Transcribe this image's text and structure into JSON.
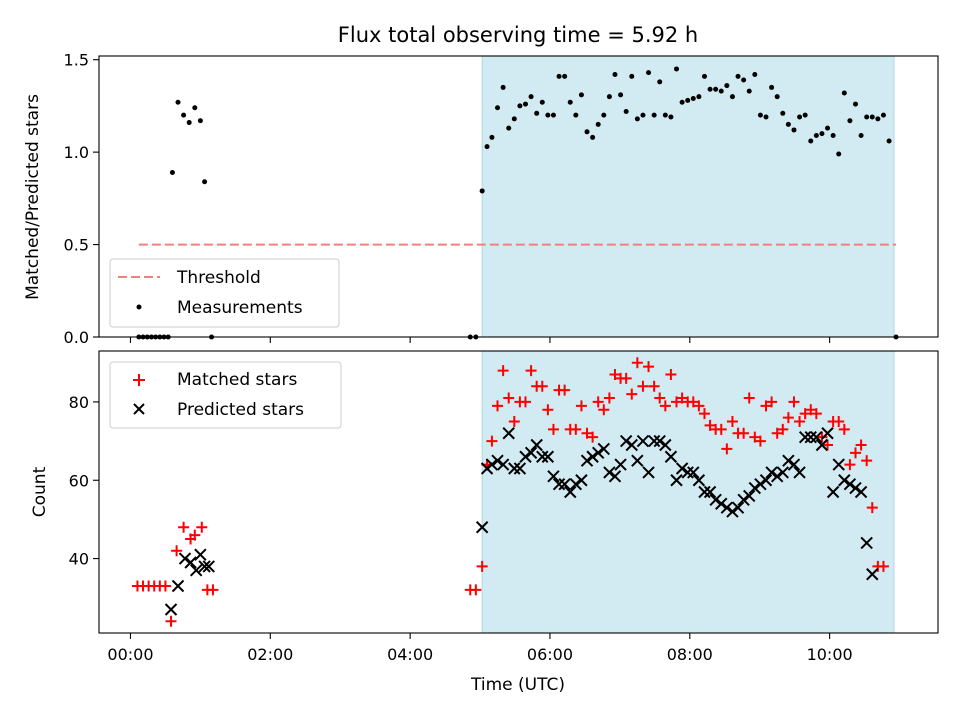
{
  "chart_data": [
    {
      "id": "ratio",
      "type": "scatter",
      "title": "Flux total observing time = 5.92 h",
      "xlabel": "",
      "ylabel": "Matched/Predicted stars",
      "xlim": [
        -0.45,
        11.55
      ],
      "ylim": [
        0,
        1.52
      ],
      "xticks": [
        0,
        2,
        4,
        6,
        8,
        10
      ],
      "yticks": [
        0.0,
        0.5,
        1.0,
        1.5
      ],
      "ytick_labels": [
        "0.0",
        "0.5",
        "1.0",
        "1.5"
      ],
      "shaded_region": {
        "x": [
          5.03,
          10.92
        ],
        "color": "#add8e6"
      },
      "threshold": {
        "y": 0.5,
        "x": [
          0.12,
          10.95
        ],
        "color": "#f08080",
        "label": "Threshold"
      },
      "legend": {
        "location": "lower-left",
        "entries": [
          "Threshold",
          "Measurements"
        ]
      },
      "series": [
        {
          "name": "Measurements",
          "color": "#000000",
          "marker": "dot",
          "points": [
            [
              0.12,
              0
            ],
            [
              0.18,
              0
            ],
            [
              0.24,
              0
            ],
            [
              0.3,
              0
            ],
            [
              0.36,
              0
            ],
            [
              0.42,
              0
            ],
            [
              0.48,
              0
            ],
            [
              0.54,
              0
            ],
            [
              0.6,
              0.89
            ],
            [
              0.68,
              1.27
            ],
            [
              0.76,
              1.2
            ],
            [
              0.84,
              1.16
            ],
            [
              0.92,
              1.24
            ],
            [
              1.0,
              1.17
            ],
            [
              1.06,
              0.84
            ],
            [
              1.16,
              0
            ],
            [
              4.86,
              0
            ],
            [
              4.94,
              0
            ],
            [
              5.03,
              0.79
            ],
            [
              5.1,
              1.03
            ],
            [
              5.17,
              1.08
            ],
            [
              5.25,
              1.24
            ],
            [
              5.33,
              1.35
            ],
            [
              5.41,
              1.13
            ],
            [
              5.49,
              1.18
            ],
            [
              5.57,
              1.25
            ],
            [
              5.65,
              1.26
            ],
            [
              5.73,
              1.3
            ],
            [
              5.81,
              1.21
            ],
            [
              5.89,
              1.27
            ],
            [
              5.97,
              1.2
            ],
            [
              6.05,
              1.2
            ],
            [
              6.13,
              1.41
            ],
            [
              6.21,
              1.41
            ],
            [
              6.29,
              1.27
            ],
            [
              6.37,
              1.2
            ],
            [
              6.45,
              1.31
            ],
            [
              6.53,
              1.11
            ],
            [
              6.61,
              1.08
            ],
            [
              6.69,
              1.15
            ],
            [
              6.77,
              1.2
            ],
            [
              6.85,
              1.3
            ],
            [
              6.93,
              1.42
            ],
            [
              7.01,
              1.31
            ],
            [
              7.09,
              1.22
            ],
            [
              7.17,
              1.41
            ],
            [
              7.25,
              1.18
            ],
            [
              7.33,
              1.2
            ],
            [
              7.41,
              1.43
            ],
            [
              7.49,
              1.2
            ],
            [
              7.57,
              1.38
            ],
            [
              7.65,
              1.2
            ],
            [
              7.73,
              1.19
            ],
            [
              7.81,
              1.45
            ],
            [
              7.89,
              1.27
            ],
            [
              7.97,
              1.28
            ],
            [
              8.05,
              1.29
            ],
            [
              8.13,
              1.3
            ],
            [
              8.21,
              1.41
            ],
            [
              8.29,
              1.34
            ],
            [
              8.37,
              1.34
            ],
            [
              8.45,
              1.33
            ],
            [
              8.53,
              1.36
            ],
            [
              8.61,
              1.3
            ],
            [
              8.69,
              1.41
            ],
            [
              8.77,
              1.39
            ],
            [
              8.85,
              1.33
            ],
            [
              8.93,
              1.42
            ],
            [
              9.01,
              1.2
            ],
            [
              9.09,
              1.19
            ],
            [
              9.17,
              1.35
            ],
            [
              9.25,
              1.3
            ],
            [
              9.33,
              1.21
            ],
            [
              9.41,
              1.15
            ],
            [
              9.49,
              1.12
            ],
            [
              9.57,
              1.19
            ],
            [
              9.65,
              1.2
            ],
            [
              9.73,
              1.06
            ],
            [
              9.81,
              1.09
            ],
            [
              9.89,
              1.1
            ],
            [
              9.97,
              1.13
            ],
            [
              10.05,
              1.09
            ],
            [
              10.13,
              0.99
            ],
            [
              10.21,
              1.32
            ],
            [
              10.29,
              1.17
            ],
            [
              10.37,
              1.26
            ],
            [
              10.45,
              1.09
            ],
            [
              10.53,
              1.19
            ],
            [
              10.61,
              1.19
            ],
            [
              10.69,
              1.18
            ],
            [
              10.77,
              1.2
            ],
            [
              10.85,
              1.06
            ],
            [
              10.95,
              0
            ]
          ]
        }
      ]
    },
    {
      "id": "counts",
      "type": "scatter",
      "title": "",
      "xlabel": "Time (UTC)",
      "ylabel": "Count",
      "xlim": [
        -0.45,
        11.55
      ],
      "ylim": [
        21,
        93
      ],
      "xticks": [
        0,
        2,
        4,
        6,
        8,
        10
      ],
      "xtick_labels": [
        "00:00",
        "02:00",
        "04:00",
        "06:00",
        "08:00",
        "10:00"
      ],
      "yticks": [
        40,
        60,
        80
      ],
      "ytick_labels": [
        "40",
        "60",
        "80"
      ],
      "shaded_region": {
        "x": [
          5.03,
          10.92
        ],
        "color": "#add8e6"
      },
      "legend": {
        "location": "top-left",
        "entries": [
          "Matched stars",
          "Predicted stars"
        ]
      },
      "series": [
        {
          "name": "Matched stars",
          "color": "#ff0000",
          "marker": "plus",
          "points": [
            [
              0.1,
              33
            ],
            [
              0.18,
              33
            ],
            [
              0.26,
              33
            ],
            [
              0.34,
              33
            ],
            [
              0.42,
              33
            ],
            [
              0.5,
              33
            ],
            [
              0.58,
              24
            ],
            [
              0.66,
              42
            ],
            [
              0.76,
              48
            ],
            [
              0.86,
              45
            ],
            [
              0.92,
              46
            ],
            [
              1.02,
              48
            ],
            [
              1.1,
              32
            ],
            [
              1.18,
              32
            ],
            [
              4.86,
              32
            ],
            [
              4.94,
              32
            ],
            [
              5.03,
              38
            ],
            [
              5.1,
              64
            ],
            [
              5.17,
              70
            ],
            [
              5.25,
              79
            ],
            [
              5.33,
              88
            ],
            [
              5.41,
              81
            ],
            [
              5.49,
              75
            ],
            [
              5.57,
              80
            ],
            [
              5.65,
              80
            ],
            [
              5.73,
              88
            ],
            [
              5.81,
              84
            ],
            [
              5.89,
              84
            ],
            [
              5.97,
              78
            ],
            [
              6.05,
              73
            ],
            [
              6.13,
              83
            ],
            [
              6.21,
              83
            ],
            [
              6.29,
              73
            ],
            [
              6.37,
              73
            ],
            [
              6.45,
              79
            ],
            [
              6.53,
              72
            ],
            [
              6.61,
              71
            ],
            [
              6.69,
              80
            ],
            [
              6.77,
              78
            ],
            [
              6.85,
              81
            ],
            [
              6.93,
              87
            ],
            [
              7.01,
              86
            ],
            [
              7.09,
              86
            ],
            [
              7.17,
              82
            ],
            [
              7.25,
              90
            ],
            [
              7.33,
              84
            ],
            [
              7.41,
              89
            ],
            [
              7.49,
              84
            ],
            [
              7.57,
              81
            ],
            [
              7.65,
              79
            ],
            [
              7.73,
              87
            ],
            [
              7.81,
              80
            ],
            [
              7.89,
              81
            ],
            [
              7.97,
              80
            ],
            [
              8.05,
              80
            ],
            [
              8.13,
              79
            ],
            [
              8.21,
              77
            ],
            [
              8.29,
              74
            ],
            [
              8.37,
              73
            ],
            [
              8.45,
              73
            ],
            [
              8.53,
              68
            ],
            [
              8.61,
              75
            ],
            [
              8.69,
              72
            ],
            [
              8.77,
              72
            ],
            [
              8.85,
              81
            ],
            [
              8.93,
              71
            ],
            [
              9.01,
              70
            ],
            [
              9.09,
              79
            ],
            [
              9.17,
              80
            ],
            [
              9.25,
              72
            ],
            [
              9.33,
              73
            ],
            [
              9.41,
              76
            ],
            [
              9.49,
              80
            ],
            [
              9.57,
              75
            ],
            [
              9.65,
              77
            ],
            [
              9.73,
              78
            ],
            [
              9.81,
              77
            ],
            [
              9.89,
              71
            ],
            [
              9.97,
              69
            ],
            [
              10.05,
              75
            ],
            [
              10.13,
              75
            ],
            [
              10.21,
              73
            ],
            [
              10.29,
              64
            ],
            [
              10.37,
              67
            ],
            [
              10.45,
              69
            ],
            [
              10.53,
              65
            ],
            [
              10.61,
              53
            ],
            [
              10.69,
              38
            ],
            [
              10.77,
              38
            ]
          ]
        },
        {
          "name": "Predicted stars",
          "color": "#000000",
          "marker": "x",
          "points": [
            [
              0.58,
              27
            ],
            [
              0.68,
              33
            ],
            [
              0.78,
              40
            ],
            [
              0.86,
              39
            ],
            [
              0.94,
              37
            ],
            [
              1.0,
              41
            ],
            [
              1.06,
              38
            ],
            [
              1.12,
              38
            ],
            [
              5.03,
              48
            ],
            [
              5.1,
              63
            ],
            [
              5.17,
              64
            ],
            [
              5.25,
              65
            ],
            [
              5.33,
              64
            ],
            [
              5.41,
              72
            ],
            [
              5.49,
              63
            ],
            [
              5.57,
              63
            ],
            [
              5.65,
              66
            ],
            [
              5.73,
              67
            ],
            [
              5.81,
              69
            ],
            [
              5.89,
              66
            ],
            [
              5.97,
              66
            ],
            [
              6.05,
              61
            ],
            [
              6.13,
              59
            ],
            [
              6.21,
              59
            ],
            [
              6.29,
              57
            ],
            [
              6.37,
              59
            ],
            [
              6.45,
              60
            ],
            [
              6.53,
              65
            ],
            [
              6.61,
              66
            ],
            [
              6.69,
              67
            ],
            [
              6.77,
              68
            ],
            [
              6.85,
              62
            ],
            [
              6.93,
              61
            ],
            [
              7.01,
              64
            ],
            [
              7.09,
              70
            ],
            [
              7.17,
              69
            ],
            [
              7.25,
              65
            ],
            [
              7.33,
              70
            ],
            [
              7.41,
              62
            ],
            [
              7.49,
              70
            ],
            [
              7.57,
              70
            ],
            [
              7.65,
              69
            ],
            [
              7.73,
              66
            ],
            [
              7.81,
              60
            ],
            [
              7.89,
              63
            ],
            [
              7.97,
              62
            ],
            [
              8.05,
              62
            ],
            [
              8.13,
              60
            ],
            [
              8.21,
              57
            ],
            [
              8.29,
              57
            ],
            [
              8.37,
              55
            ],
            [
              8.45,
              54
            ],
            [
              8.53,
              53
            ],
            [
              8.61,
              52
            ],
            [
              8.69,
              53
            ],
            [
              8.77,
              55
            ],
            [
              8.85,
              56
            ],
            [
              8.93,
              58
            ],
            [
              9.01,
              59
            ],
            [
              9.09,
              60
            ],
            [
              9.17,
              62
            ],
            [
              9.25,
              61
            ],
            [
              9.33,
              62
            ],
            [
              9.41,
              65
            ],
            [
              9.49,
              64
            ],
            [
              9.57,
              62
            ],
            [
              9.65,
              71
            ],
            [
              9.73,
              71
            ],
            [
              9.81,
              71
            ],
            [
              9.89,
              69
            ],
            [
              9.97,
              72
            ],
            [
              10.05,
              57
            ],
            [
              10.13,
              64
            ],
            [
              10.21,
              60
            ],
            [
              10.29,
              59
            ],
            [
              10.37,
              58
            ],
            [
              10.45,
              57
            ],
            [
              10.53,
              44
            ],
            [
              10.61,
              36
            ]
          ]
        }
      ]
    }
  ]
}
